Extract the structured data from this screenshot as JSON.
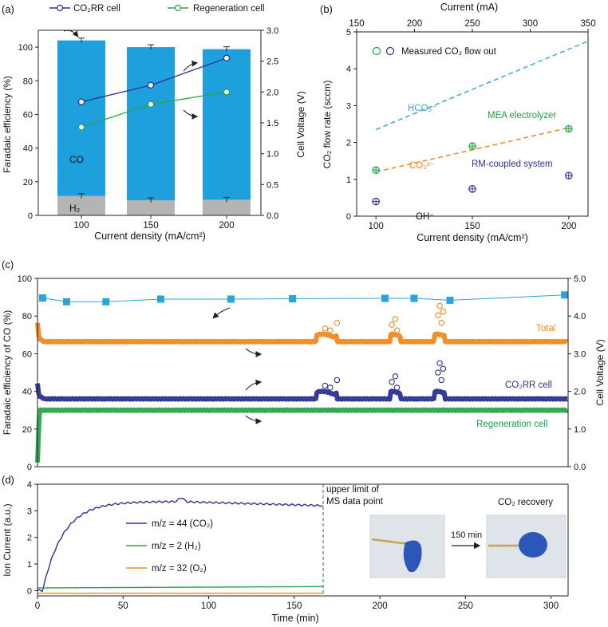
{
  "panel_labels": {
    "a": "(a)",
    "b": "(b)",
    "c": "(c)",
    "d": "(d)"
  },
  "colors": {
    "bar_co": "#1ea0dd",
    "bar_h2": "#b4b4b4",
    "co2rr": "#2b3290",
    "regen": "#2aa54a",
    "total": "#f08a1e",
    "squares": "#2ba4dc",
    "hco3": "#3aa7de",
    "co3": "#f08a1e",
    "mea_text": "#1f9e47",
    "oh": "#2b3290"
  },
  "chart_data": [
    {
      "panel": "a",
      "type": "bar",
      "categories": [
        "100",
        "150",
        "200"
      ],
      "xlabel": "Current density (mA/cm²)",
      "ylabel": "Faradaic efficiency (%)",
      "y2label": "Cell Voltage (V)",
      "ylim": [
        0,
        110
      ],
      "y2lim": [
        0,
        3.0
      ],
      "yticks": [
        "0",
        "20",
        "40",
        "60",
        "80",
        "100"
      ],
      "y2ticks": [
        "0.0",
        "0.5",
        "1.0",
        "1.5",
        "2.0",
        "2.5",
        "3.0"
      ],
      "bars": [
        {
          "name": "CO",
          "values": [
            92.5,
            91.0,
            89.5
          ]
        },
        {
          "name": "H₂",
          "values": [
            11.5,
            9.0,
            9.3
          ]
        }
      ],
      "bar_labels": {
        "co": "CO",
        "h2": "H₂"
      },
      "lines": [
        {
          "name": "CO₂RR cell",
          "axis": "y2",
          "x": [
            100,
            150,
            200
          ],
          "values": [
            1.84,
            2.11,
            2.55
          ]
        },
        {
          "name": "Regeneration cell",
          "axis": "y2",
          "x": [
            100,
            150,
            200
          ],
          "values": [
            1.43,
            1.8,
            2.0
          ]
        }
      ],
      "legend": [
        "CO₂RR cell",
        "Regeneration cell"
      ]
    },
    {
      "panel": "b",
      "type": "scatter",
      "xlabel": "Current density (mA/cm²)",
      "x2label": "Current (mA)",
      "ylabel": "CO₂ flow rate (sccm)",
      "xlim": [
        90,
        210
      ],
      "x2lim": [
        150,
        350
      ],
      "ylim": [
        0,
        5
      ],
      "xticks": [
        "100",
        "150",
        "200"
      ],
      "x2ticks": [
        "150",
        "200",
        "250",
        "300",
        "350"
      ],
      "yticks": [
        "0",
        "1",
        "2",
        "3",
        "4",
        "5"
      ],
      "series": [
        {
          "name": "MEA electrolyzer",
          "x": [
            100,
            150,
            200
          ],
          "y": [
            1.25,
            1.9,
            2.37
          ]
        },
        {
          "name": "RM-coupled system",
          "x": [
            100,
            150,
            200
          ],
          "y": [
            0.4,
            0.74,
            1.1
          ]
        }
      ],
      "lines": [
        {
          "name": "HCO₃⁻",
          "x": [
            100,
            210
          ],
          "y": [
            2.35,
            4.75
          ]
        },
        {
          "name": "CO₃²⁻",
          "x": [
            100,
            200
          ],
          "y": [
            1.2,
            2.4
          ]
        },
        {
          "name": "OH⁻",
          "x": [
            100,
            200
          ],
          "y": [
            0,
            0
          ]
        }
      ],
      "labels": {
        "legend": "Measured CO₂ flow out",
        "hco3": "HCO₃⁻",
        "co3": "CO₃²⁻",
        "oh": "OH⁻",
        "mea": "MEA electrolyzer",
        "rm": "RM-coupled system"
      }
    },
    {
      "panel": "c",
      "type": "line",
      "xlim": [
        0,
        310
      ],
      "ylabel": "Faradaic efficiency of CO (%)",
      "y2label": "Cell Voltage (V)",
      "ylim": [
        0,
        100
      ],
      "y2lim": [
        0,
        5.0
      ],
      "yticks": [
        "0",
        "20",
        "40",
        "60",
        "80",
        "100"
      ],
      "y2ticks": [
        "0.0",
        "1.0",
        "2.0",
        "3.0",
        "4.0",
        "5.0"
      ],
      "squares": {
        "x": [
          3,
          17,
          40,
          72,
          113,
          149,
          203,
          220,
          241,
          308
        ],
        "y": [
          4.48,
          4.38,
          4.38,
          4.45,
          4.45,
          4.46,
          4.47,
          4.47,
          4.42,
          4.56
        ]
      },
      "series": [
        {
          "name": "Total",
          "axis": "y2",
          "baseline": 3.32
        },
        {
          "name": "CO₂RR cell",
          "axis": "y2",
          "baseline": 1.8
        },
        {
          "name": "Regeneration cell",
          "axis": "y2",
          "baseline": 1.5
        }
      ],
      "labels": {
        "total": "Total",
        "co2rr": "CO₂RR cell",
        "regen": "Regeneration cell"
      }
    },
    {
      "panel": "d",
      "type": "line",
      "xlabel": "Time (min)",
      "ylabel": "Ion Current (a.u.)",
      "xlim": [
        0,
        310
      ],
      "ylim": [
        -0.2,
        4
      ],
      "xticks": [
        "0",
        "50",
        "100",
        "150",
        "200",
        "250",
        "300"
      ],
      "yticks": [
        "0",
        "1",
        "2",
        "3",
        "4"
      ],
      "series": [
        {
          "name": "m/z = 44 (CO₂)",
          "plateau": 3.35,
          "end": 3.2
        },
        {
          "name": "m/z = 2 (H₂)",
          "plateau": 0.1,
          "end": 0.15
        },
        {
          "name": "m/z = 32 (O₂)",
          "plateau": -0.1,
          "end": -0.1
        }
      ],
      "cutoff_x": 167,
      "annotations": {
        "upper": "upper limit of",
        "upper2": "MS data point",
        "recovery": "CO₂ recovery",
        "time": "150 min"
      }
    }
  ]
}
